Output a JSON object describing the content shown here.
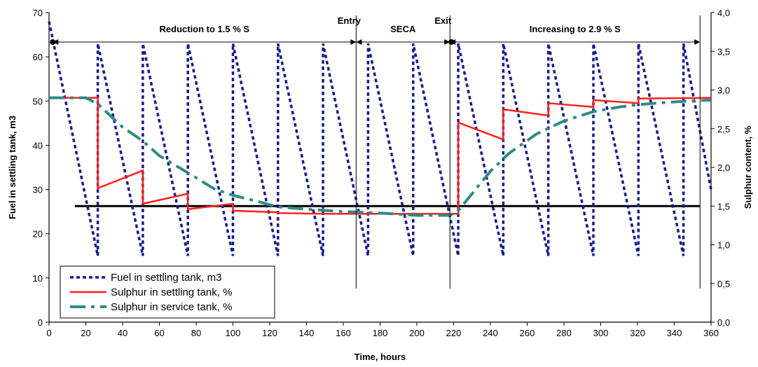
{
  "chart_data": {
    "type": "line",
    "xlabel": "Time, hours",
    "ylabel_left": "Fuel in settling tank, m3",
    "ylabel_right": "Sulphur content, %",
    "xlim": [
      0,
      360
    ],
    "ylim_left": [
      0,
      70
    ],
    "ylim_right": [
      0,
      4
    ],
    "x_ticks": [
      "0",
      "20",
      "40",
      "60",
      "80",
      "100",
      "120",
      "140",
      "160",
      "180",
      "200",
      "220",
      "240",
      "260",
      "280",
      "300",
      "320",
      "340",
      "360"
    ],
    "y_left_ticks": [
      "0",
      "10",
      "20",
      "30",
      "40",
      "50",
      "60",
      "70"
    ],
    "y_right_ticks": [
      "0,0",
      "0,5",
      "1,0",
      "1,5",
      "2,0",
      "2,5",
      "3,0",
      "3,5",
      "4,0"
    ],
    "legend_position": "bottom-left",
    "series": [
      {
        "name": "Fuel in settling tank, m3",
        "axis": "left",
        "color": "#1a1a8c",
        "style": "dotted",
        "points": [
          [
            0,
            68
          ],
          [
            26.5,
            15
          ],
          [
            26.5,
            63
          ],
          [
            51,
            15
          ],
          [
            51,
            63
          ],
          [
            75.5,
            15
          ],
          [
            75.5,
            63
          ],
          [
            100,
            15
          ],
          [
            100,
            63
          ],
          [
            124.5,
            15
          ],
          [
            124.5,
            63
          ],
          [
            149,
            15
          ],
          [
            149,
            63
          ],
          [
            173.5,
            15
          ],
          [
            173.5,
            63
          ],
          [
            198,
            15
          ],
          [
            198,
            63
          ],
          [
            222.5,
            15
          ],
          [
            222.5,
            63
          ],
          [
            247,
            15
          ],
          [
            247,
            63
          ],
          [
            271.5,
            15
          ],
          [
            271.5,
            63
          ],
          [
            296,
            15
          ],
          [
            296,
            63
          ],
          [
            320.5,
            15
          ],
          [
            320.5,
            63
          ],
          [
            345,
            15
          ],
          [
            345,
            63
          ],
          [
            360,
            30
          ]
        ]
      },
      {
        "name": "Sulphur in settling tank, %",
        "axis": "right",
        "color": "#ff2020",
        "style": "solid",
        "points": [
          [
            0,
            2.9
          ],
          [
            26.5,
            2.9
          ],
          [
            26.5,
            1.73
          ],
          [
            51,
            1.96
          ],
          [
            51,
            1.53
          ],
          [
            75.5,
            1.66
          ],
          [
            75.5,
            1.46
          ],
          [
            100,
            1.53
          ],
          [
            100,
            1.44
          ],
          [
            124.5,
            1.42
          ],
          [
            124.5,
            1.41
          ],
          [
            149,
            1.4
          ],
          [
            222.5,
            1.4
          ],
          [
            222.5,
            2.58
          ],
          [
            247,
            2.36
          ],
          [
            247,
            2.75
          ],
          [
            271.5,
            2.67
          ],
          [
            271.5,
            2.83
          ],
          [
            296,
            2.78
          ],
          [
            296,
            2.87
          ],
          [
            320.5,
            2.83
          ],
          [
            320.5,
            2.89
          ],
          [
            360,
            2.9
          ]
        ]
      },
      {
        "name": "Sulphur in service tank, %",
        "axis": "right",
        "color": "#2e8b82",
        "style": "dashdot",
        "points": [
          [
            0,
            2.9
          ],
          [
            20,
            2.9
          ],
          [
            26.5,
            2.82
          ],
          [
            40,
            2.52
          ],
          [
            51,
            2.34
          ],
          [
            60,
            2.15
          ],
          [
            75.5,
            1.93
          ],
          [
            90,
            1.72
          ],
          [
            100,
            1.64
          ],
          [
            115,
            1.55
          ],
          [
            124.5,
            1.49
          ],
          [
            140,
            1.46
          ],
          [
            160,
            1.43
          ],
          [
            180,
            1.41
          ],
          [
            200,
            1.38
          ],
          [
            218,
            1.38
          ],
          [
            222.5,
            1.44
          ],
          [
            230,
            1.66
          ],
          [
            240,
            1.95
          ],
          [
            250,
            2.18
          ],
          [
            265,
            2.43
          ],
          [
            280,
            2.6
          ],
          [
            296,
            2.72
          ],
          [
            310,
            2.78
          ],
          [
            320,
            2.81
          ],
          [
            335,
            2.84
          ],
          [
            350,
            2.86
          ],
          [
            360,
            2.87
          ]
        ]
      }
    ],
    "reference_line": {
      "axis": "right",
      "value": 1.5,
      "from_x": 14,
      "to_x": 354,
      "color": "#000000"
    },
    "vertical_markers": [
      {
        "x": 167,
        "label": "Entry"
      },
      {
        "x": 218,
        "label": "Exit"
      },
      {
        "x": 354,
        "label": ""
      }
    ],
    "phase_annotations": [
      {
        "from_x": 2,
        "to_x": 167,
        "label": "Reduction to 1.5 % S"
      },
      {
        "from_x": 167,
        "to_x": 218,
        "label": "SECA"
      },
      {
        "from_x": 218,
        "to_x": 354,
        "label": "Increasing to 2.9 % S"
      }
    ]
  }
}
